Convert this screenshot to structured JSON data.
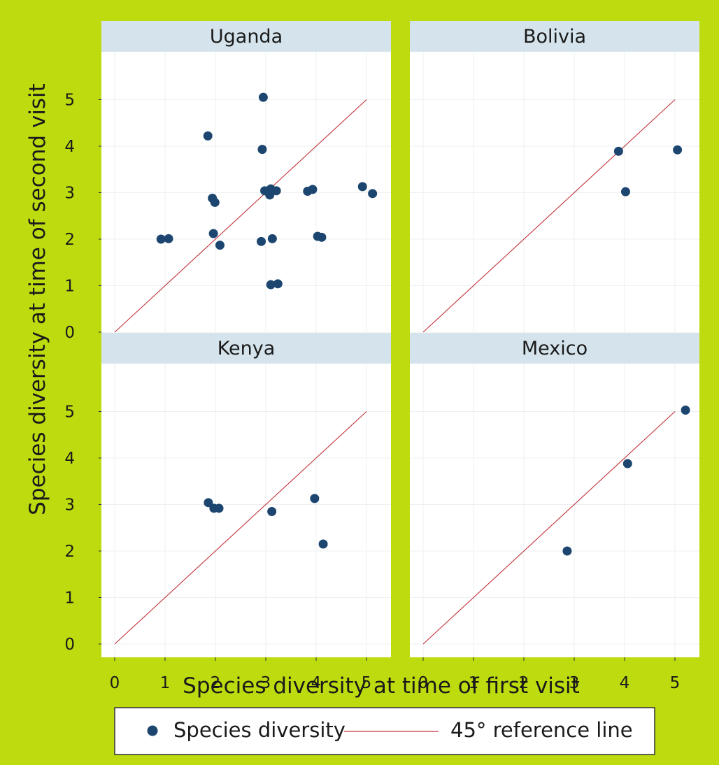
{
  "colors": {
    "background": "#bedb0f",
    "panel": "#ffffff",
    "strip": "#d5e4ec",
    "point": "#1c4670",
    "reference_line": "#c2313a",
    "grid": "#eef0f2"
  },
  "chart_data": {
    "type": "scatter",
    "xlabel": "Species diversity at time of first visit",
    "ylabel": "Species diversity at time of second visit",
    "xlim": [
      0,
      5
    ],
    "ylim": [
      0,
      5
    ],
    "x_ticks": [
      "0",
      "1",
      "2",
      "3",
      "4",
      "5"
    ],
    "y_ticks": [
      "0",
      "1",
      "2",
      "3",
      "4",
      "5"
    ],
    "grid": true,
    "legend": {
      "position": "bottom",
      "entries": [
        {
          "label": "Species diversity",
          "kind": "point"
        },
        {
          "label": "45° reference line",
          "kind": "line"
        }
      ]
    },
    "reference_line": {
      "x": [
        0,
        5
      ],
      "y": [
        0,
        5
      ]
    },
    "panels": [
      {
        "title": "Uganda",
        "points": [
          [
            2.95,
            5.05
          ],
          [
            1.85,
            4.22
          ],
          [
            2.93,
            3.93
          ],
          [
            1.94,
            2.88
          ],
          [
            1.99,
            2.79
          ],
          [
            2.98,
            3.04
          ],
          [
            3.1,
            3.08
          ],
          [
            3.08,
            2.95
          ],
          [
            3.21,
            3.04
          ],
          [
            3.83,
            3.03
          ],
          [
            3.93,
            3.07
          ],
          [
            4.92,
            3.13
          ],
          [
            5.12,
            2.98
          ],
          [
            0.92,
            2.0
          ],
          [
            1.07,
            2.01
          ],
          [
            1.96,
            2.12
          ],
          [
            2.09,
            1.87
          ],
          [
            2.91,
            1.95
          ],
          [
            3.13,
            2.01
          ],
          [
            4.03,
            2.06
          ],
          [
            4.11,
            2.04
          ],
          [
            3.1,
            1.02
          ],
          [
            3.24,
            1.04
          ]
        ]
      },
      {
        "title": "Bolivia",
        "points": [
          [
            3.88,
            3.89
          ],
          [
            5.05,
            3.92
          ],
          [
            4.02,
            3.02
          ]
        ]
      },
      {
        "title": "Kenya",
        "points": [
          [
            1.86,
            3.04
          ],
          [
            1.97,
            2.92
          ],
          [
            2.07,
            2.92
          ],
          [
            3.12,
            2.85
          ],
          [
            3.97,
            3.13
          ],
          [
            4.14,
            2.15
          ]
        ]
      },
      {
        "title": "Mexico",
        "points": [
          [
            5.21,
            5.03
          ],
          [
            4.06,
            3.88
          ],
          [
            2.86,
            2.0
          ]
        ]
      }
    ]
  }
}
